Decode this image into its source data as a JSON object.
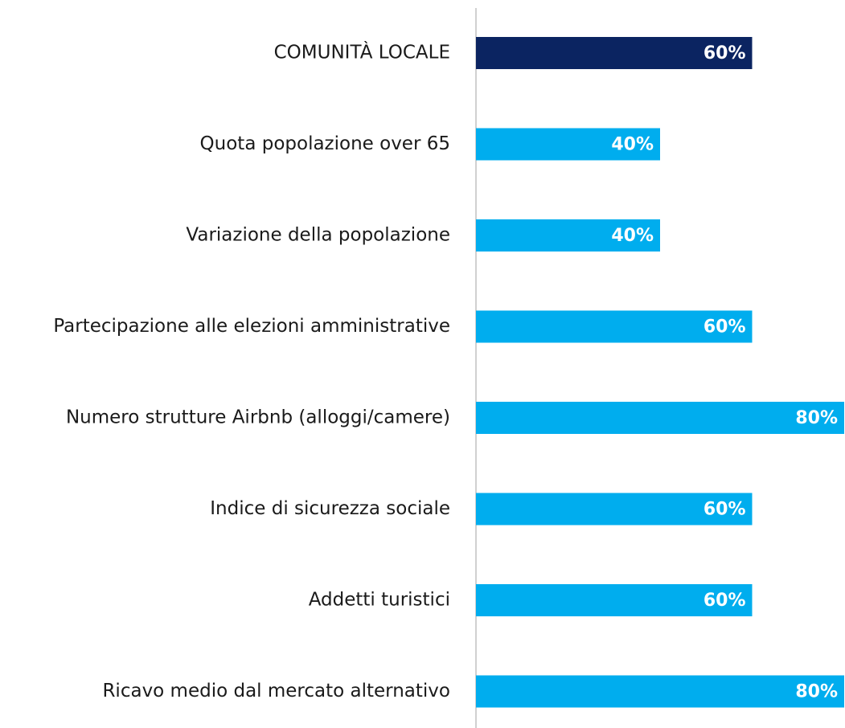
{
  "chart_data": {
    "type": "barh",
    "categories": [
      "COMUNITÀ LOCALE",
      "Quota popolazione over 65",
      "Variazione della popolazione",
      "Partecipazione alle elezioni amministrative",
      "Numero strutture Airbnb (alloggi/camere)",
      "Indice di sicurezza sociale",
      "Addetti turistici",
      "Ricavo medio dal mercato alternativo"
    ],
    "values": [
      60,
      40,
      40,
      60,
      80,
      60,
      60,
      80
    ],
    "value_labels": [
      "60%",
      "40%",
      "40%",
      "60%",
      "80%",
      "60%",
      "60%",
      "80%"
    ],
    "colors": [
      "#0b2461",
      "#00adee",
      "#00adee",
      "#00adee",
      "#00adee",
      "#00adee",
      "#00adee",
      "#00adee"
    ],
    "xlim": [
      0,
      80
    ]
  }
}
